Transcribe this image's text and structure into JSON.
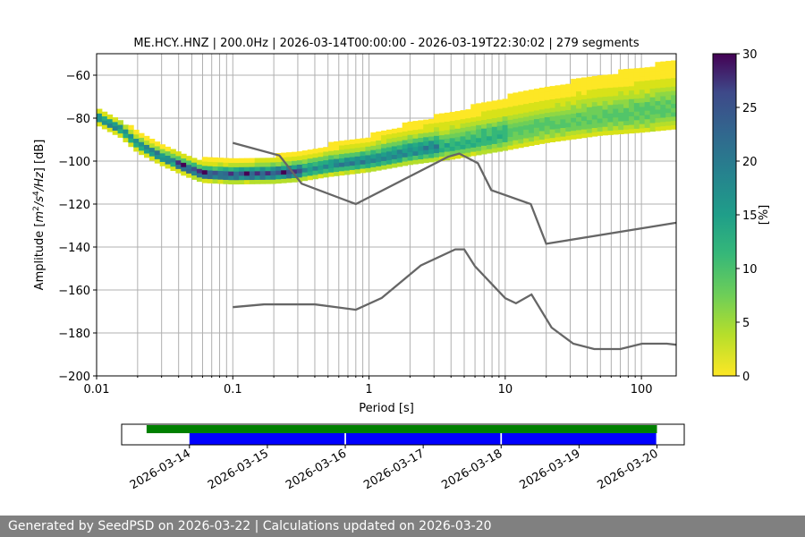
{
  "chart_data": [
    {
      "type": "heatmap",
      "title": "ME.HCY..HNZ | 200.0Hz | 2026-03-14T00:00:00 - 2026-03-19T22:30:02 | 279 segments",
      "xlabel": "Period [s]",
      "ylabel_parts": [
        "Amplitude [",
        "m",
        "2",
        "/",
        "s",
        "4",
        "/",
        "Hz",
        "] [dB]"
      ],
      "xscale": "log",
      "xlim": [
        0.01,
        180
      ],
      "ylim": [
        -200,
        -50
      ],
      "xticks": [
        {
          "v": 0.01,
          "label": "0.01"
        },
        {
          "v": 0.1,
          "label": "0.1"
        },
        {
          "v": 1,
          "label": "1"
        },
        {
          "v": 10,
          "label": "10"
        },
        {
          "v": 100,
          "label": "100"
        }
      ],
      "yticks": [
        {
          "v": -60,
          "label": "−60"
        },
        {
          "v": -80,
          "label": "−80"
        },
        {
          "v": -100,
          "label": "−100"
        },
        {
          "v": -120,
          "label": "−120"
        },
        {
          "v": -140,
          "label": "−140"
        },
        {
          "v": -160,
          "label": "−160"
        },
        {
          "v": -180,
          "label": "−180"
        },
        {
          "v": -200,
          "label": "−200"
        }
      ],
      "grid": true,
      "psd_mode_curve": [
        [
          0.01,
          -80
        ],
        [
          0.015,
          -86
        ],
        [
          0.02,
          -93
        ],
        [
          0.03,
          -99
        ],
        [
          0.045,
          -104
        ],
        [
          0.06,
          -107
        ],
        [
          0.1,
          -107.5
        ],
        [
          0.2,
          -107
        ],
        [
          0.3,
          -106
        ],
        [
          0.5,
          -103.5
        ],
        [
          1,
          -101
        ],
        [
          2,
          -97
        ],
        [
          4,
          -94
        ],
        [
          10,
          -89
        ],
        [
          20,
          -85
        ],
        [
          50,
          -81
        ],
        [
          100,
          -78.5
        ],
        [
          180,
          -76
        ]
      ],
      "psd_spread_above": [
        [
          0.01,
          4
        ],
        [
          0.03,
          6
        ],
        [
          0.06,
          7
        ],
        [
          0.3,
          9
        ],
        [
          1,
          12
        ],
        [
          3,
          15
        ],
        [
          10,
          18
        ],
        [
          50,
          20
        ],
        [
          180,
          22
        ]
      ],
      "psd_spread_below": [
        [
          0.01,
          1
        ],
        [
          0.06,
          1
        ],
        [
          1,
          2
        ],
        [
          10,
          4
        ],
        [
          50,
          5
        ],
        [
          180,
          7
        ]
      ],
      "noise_models": [
        {
          "name": "NHNM",
          "color": "#666666",
          "points": [
            [
              0.1,
              -91.5
            ],
            [
              0.22,
              -97.4
            ],
            [
              0.32,
              -110.5
            ],
            [
              0.8,
              -120
            ],
            [
              3.8,
              -98
            ],
            [
              4.6,
              -96.5
            ],
            [
              6.3,
              -101
            ],
            [
              7.9,
              -113.5
            ],
            [
              15.4,
              -120
            ],
            [
              20,
              -138.5
            ],
            [
              180,
              -128.7
            ]
          ]
        },
        {
          "name": "NLNM",
          "color": "#666666",
          "points": [
            [
              0.1,
              -168
            ],
            [
              0.17,
              -166.7
            ],
            [
              0.4,
              -166.7
            ],
            [
              0.8,
              -169.2
            ],
            [
              1.24,
              -163.7
            ],
            [
              2.4,
              -148.6
            ],
            [
              4.3,
              -141.1
            ],
            [
              5,
              -141.1
            ],
            [
              6,
              -149
            ],
            [
              10,
              -163.8
            ],
            [
              12,
              -166.2
            ],
            [
              15.6,
              -162.1
            ],
            [
              21.9,
              -177.5
            ],
            [
              31.6,
              -185
            ],
            [
              45,
              -187.5
            ],
            [
              70,
              -187.5
            ],
            [
              101,
              -185
            ],
            [
              154,
              -185
            ],
            [
              180,
              -185.5
            ]
          ]
        }
      ],
      "colorbar": {
        "label": "[%]",
        "range": [
          0,
          30
        ],
        "ticks": [
          {
            "v": 0,
            "label": "0"
          },
          {
            "v": 5,
            "label": "5"
          },
          {
            "v": 10,
            "label": "10"
          },
          {
            "v": 15,
            "label": "15"
          },
          {
            "v": 20,
            "label": "20"
          },
          {
            "v": 25,
            "label": "25"
          },
          {
            "v": 30,
            "label": "30"
          }
        ],
        "colormap": "viridis_r"
      }
    },
    {
      "type": "timeline",
      "xticks": [
        "2026-03-14",
        "2026-03-15",
        "2026-03-16",
        "2026-03-17",
        "2026-03-18",
        "2026-03-19",
        "2026-03-20"
      ],
      "xlim_days": [
        -0.87,
        6.35
      ],
      "series": [
        {
          "name": "available data",
          "color": "#008000",
          "spans": [
            [
              -0.55,
              6.0
            ]
          ]
        },
        {
          "name": "used segments",
          "color": "#0000ff",
          "spans": [
            [
              0.0,
              1.99
            ],
            [
              2.01,
              3.99
            ],
            [
              4.01,
              5.99
            ]
          ]
        }
      ]
    }
  ],
  "footer": {
    "text": "Generated by SeedPSD on 2026-03-22 | Calculations updated on 2026-03-20"
  }
}
